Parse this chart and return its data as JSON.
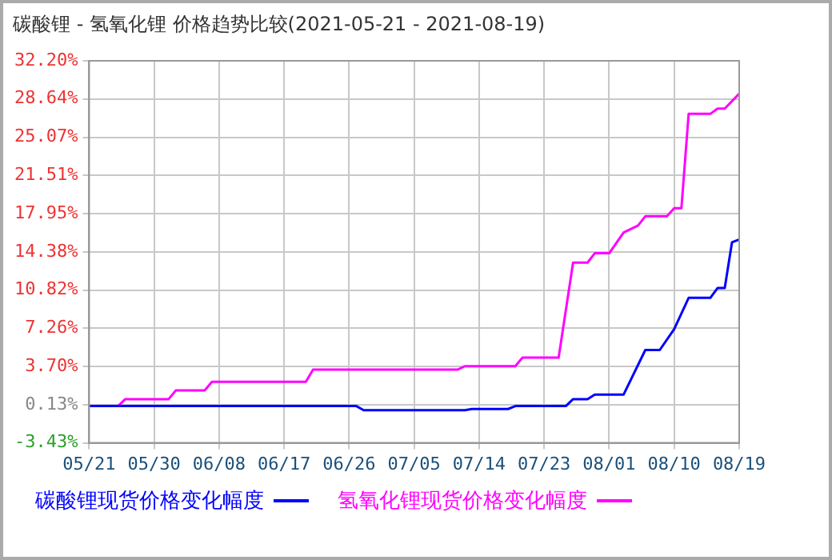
{
  "chart_data": {
    "type": "line",
    "title": "碳酸锂 - 氢氧化锂 价格趋势比较(2021-05-21 - 2021-08-19)",
    "series": [
      {
        "name": "碳酸锂现货价格变化幅度",
        "color": "#0000ff",
        "x": [
          "2021-05-21",
          "2021-06-27",
          "2021-06-28",
          "2021-07-12",
          "2021-07-13",
          "2021-07-18",
          "2021-07-19",
          "2021-07-26",
          "2021-07-27",
          "2021-07-29",
          "2021-07-30",
          "2021-08-03",
          "2021-08-06",
          "2021-08-08",
          "2021-08-10",
          "2021-08-12",
          "2021-08-15",
          "2021-08-16",
          "2021-08-17",
          "2021-08-18",
          "2021-08-19"
        ],
        "values": [
          0,
          0,
          -0.38,
          -0.38,
          -0.27,
          -0.27,
          0,
          0,
          0.65,
          0.65,
          1.08,
          1.08,
          5.23,
          5.23,
          7.18,
          10.09,
          10.09,
          11.01,
          11.01,
          15.27,
          15.54
        ]
      },
      {
        "name": "氢氧化锂现货价格变化幅度",
        "color": "#ff00ff",
        "x": [
          "2021-05-21",
          "2021-05-25",
          "2021-05-26",
          "2021-06-01",
          "2021-06-02",
          "2021-06-06",
          "2021-06-07",
          "2021-06-20",
          "2021-06-21",
          "2021-07-11",
          "2021-07-12",
          "2021-07-19",
          "2021-07-20",
          "2021-07-25",
          "2021-07-27",
          "2021-07-29",
          "2021-07-30",
          "2021-08-01",
          "2021-08-03",
          "2021-08-05",
          "2021-08-06",
          "2021-08-09",
          "2021-08-10",
          "2021-08-11",
          "2021-08-12",
          "2021-08-15",
          "2021-08-16",
          "2021-08-17",
          "2021-08-19"
        ],
        "values": [
          0,
          0,
          0.65,
          0.65,
          1.46,
          1.46,
          2.27,
          2.27,
          3.4,
          3.4,
          3.72,
          3.72,
          4.53,
          4.53,
          13.38,
          13.38,
          14.25,
          14.25,
          16.19,
          16.84,
          17.7,
          17.7,
          18.46,
          18.46,
          27.25,
          27.25,
          27.74,
          27.74,
          29.14
        ]
      }
    ],
    "xlim": [
      "2021-05-21",
      "2021-08-19"
    ],
    "xticks": [
      {
        "value": "2021-05-21",
        "label": "05/21"
      },
      {
        "value": "2021-05-30",
        "label": "05/30"
      },
      {
        "value": "2021-06-08",
        "label": "06/08"
      },
      {
        "value": "2021-06-17",
        "label": "06/17"
      },
      {
        "value": "2021-06-26",
        "label": "06/26"
      },
      {
        "value": "2021-07-05",
        "label": "07/05"
      },
      {
        "value": "2021-07-14",
        "label": "07/14"
      },
      {
        "value": "2021-07-23",
        "label": "07/23"
      },
      {
        "value": "2021-08-01",
        "label": "08/01"
      },
      {
        "value": "2021-08-10",
        "label": "08/10"
      },
      {
        "value": "2021-08-19",
        "label": "08/19"
      }
    ],
    "ylim": [
      -3.43,
      32.2
    ],
    "yticks": [
      {
        "value": -3.43,
        "label": "-3.43%"
      },
      {
        "value": 0.13,
        "label": "0.13%"
      },
      {
        "value": 3.7,
        "label": "3.70%"
      },
      {
        "value": 7.26,
        "label": "7.26%"
      },
      {
        "value": 10.82,
        "label": "10.82%"
      },
      {
        "value": 14.38,
        "label": "14.38%"
      },
      {
        "value": 17.95,
        "label": "17.95%"
      },
      {
        "value": 21.51,
        "label": "21.51%"
      },
      {
        "value": 25.07,
        "label": "25.07%"
      },
      {
        "value": 28.64,
        "label": "28.64%"
      },
      {
        "value": 32.2,
        "label": "32.20%"
      }
    ],
    "grid": true,
    "legend": "bottom",
    "marker": "none",
    "line_style": "solid"
  }
}
